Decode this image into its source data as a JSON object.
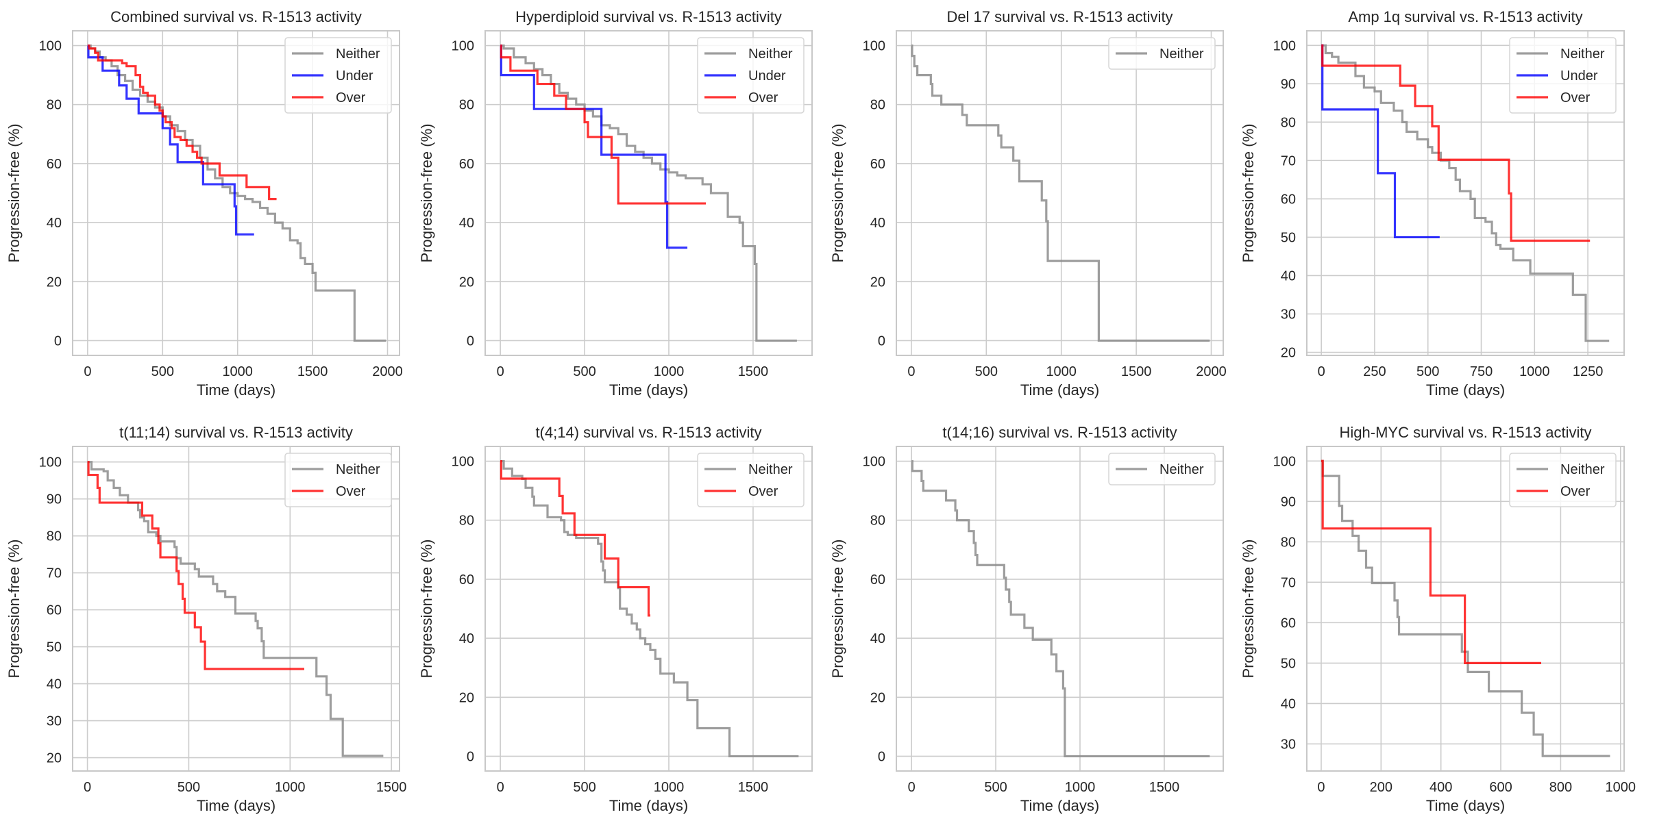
{
  "figure": {
    "colors": {
      "Neither": "#8c8c8c",
      "Under": "#0000ff",
      "Over": "#ff0000",
      "grid": "#cccccc",
      "spine": "#c8c8c8"
    },
    "xlabel": "Time (days)",
    "ylabel": "Progression-free (%)"
  },
  "chart_data": [
    {
      "type": "line",
      "title": "Combined survival vs. R-1513 activity",
      "xlabel": "Time (days)",
      "ylabel": "Progression-free (%)",
      "xlim": [
        -100,
        2080
      ],
      "ylim": [
        -5,
        105
      ],
      "xticks": [
        0,
        500,
        1000,
        1500,
        2000
      ],
      "yticks": [
        0,
        20,
        40,
        60,
        80,
        100
      ],
      "grid": true,
      "legend": "top-right",
      "series": [
        {
          "name": "Neither",
          "x": [
            0,
            20,
            50,
            80,
            120,
            160,
            200,
            250,
            300,
            350,
            400,
            450,
            500,
            550,
            600,
            650,
            700,
            750,
            800,
            850,
            900,
            950,
            1000,
            1050,
            1100,
            1150,
            1200,
            1250,
            1300,
            1350,
            1400,
            1420,
            1450,
            1500,
            1520,
            1760,
            1780,
            1990
          ],
          "y": [
            100,
            99,
            98,
            96,
            95,
            93,
            90,
            88,
            85,
            83,
            81,
            79,
            76,
            73,
            71,
            68,
            66,
            62,
            58,
            55,
            52,
            50,
            49,
            48,
            47,
            45,
            43,
            40,
            38,
            34,
            33,
            28,
            26,
            23,
            17,
            17,
            0,
            0
          ]
        },
        {
          "name": "Under",
          "x": [
            0,
            5,
            100,
            210,
            260,
            340,
            500,
            510,
            550,
            600,
            770,
            980,
            990,
            1110
          ],
          "y": [
            100,
            96,
            91.5,
            86.5,
            82,
            77,
            72,
            72,
            66.5,
            60.5,
            53,
            45.5,
            36,
            36
          ]
        },
        {
          "name": "Over",
          "x": [
            0,
            10,
            50,
            70,
            230,
            260,
            320,
            350,
            370,
            400,
            450,
            480,
            500,
            520,
            560,
            580,
            620,
            660,
            700,
            730,
            760,
            880,
            1060,
            1210,
            1260
          ],
          "y": [
            100,
            99,
            97.5,
            95,
            94,
            93,
            90,
            86,
            84,
            83,
            80,
            78,
            76,
            74,
            72,
            69,
            68,
            66,
            64,
            62,
            60,
            56,
            52,
            48,
            48
          ]
        }
      ]
    },
    {
      "type": "line",
      "title": "Hyperdiploid survival vs. R-1513 activity",
      "xlabel": "Time (days)",
      "ylabel": "Progression-free (%)",
      "xlim": [
        -90,
        1850
      ],
      "ylim": [
        -5,
        105
      ],
      "xticks": [
        0,
        500,
        1000,
        1500
      ],
      "yticks": [
        0,
        20,
        40,
        60,
        80,
        100
      ],
      "grid": true,
      "legend": "top-right",
      "series": [
        {
          "name": "Neither",
          "x": [
            0,
            20,
            80,
            150,
            200,
            250,
            300,
            350,
            400,
            450,
            500,
            550,
            600,
            650,
            700,
            750,
            800,
            850,
            900,
            950,
            1000,
            1050,
            1100,
            1150,
            1200,
            1250,
            1300,
            1350,
            1420,
            1440,
            1500,
            1510,
            1520,
            1760
          ],
          "y": [
            100,
            99,
            96,
            94,
            92,
            90,
            87,
            84,
            82,
            80,
            78,
            76,
            73,
            72,
            70,
            66,
            64,
            62,
            60,
            58,
            57,
            56,
            55,
            55,
            53,
            50,
            50,
            42,
            40,
            32,
            32,
            26,
            0,
            0
          ]
        },
        {
          "name": "Under",
          "x": [
            0,
            5,
            200,
            600,
            980,
            990,
            1110
          ],
          "y": [
            100,
            90,
            78.5,
            63,
            47,
            31.5,
            31.5
          ]
        },
        {
          "name": "Over",
          "x": [
            0,
            5,
            60,
            220,
            320,
            390,
            500,
            520,
            660,
            700,
            1220
          ],
          "y": [
            100,
            96,
            91.5,
            87,
            83,
            78.5,
            74,
            69,
            62,
            46.5,
            46.5
          ]
        }
      ]
    },
    {
      "type": "line",
      "title": "Del 17 survival vs. R-1513 activity",
      "xlabel": "Time (days)",
      "ylabel": "Progression-free (%)",
      "xlim": [
        -100,
        2080
      ],
      "ylim": [
        -5,
        105
      ],
      "xticks": [
        0,
        500,
        1000,
        1500,
        2000
      ],
      "yticks": [
        0,
        20,
        40,
        60,
        80,
        100
      ],
      "grid": true,
      "legend": "top-right",
      "series": [
        {
          "name": "Neither",
          "x": [
            0,
            5,
            20,
            40,
            130,
            140,
            200,
            340,
            370,
            580,
            600,
            680,
            720,
            870,
            900,
            910,
            1250,
            1990
          ],
          "y": [
            100,
            96.5,
            93,
            90,
            87,
            83,
            80,
            76.5,
            73,
            69.5,
            65.5,
            61,
            54,
            47.5,
            40.5,
            27,
            0,
            0
          ]
        }
      ]
    },
    {
      "type": "line",
      "title": "Amp 1q survival vs. R-1513 activity",
      "xlabel": "Time (days)",
      "ylabel": "Progression-free (%)",
      "xlim": [
        -68,
        1420
      ],
      "ylim": [
        19.2,
        103.8
      ],
      "xticks": [
        0,
        250,
        500,
        750,
        1000,
        1250
      ],
      "yticks": [
        20,
        30,
        40,
        50,
        60,
        70,
        80,
        90,
        100
      ],
      "grid": true,
      "legend": "top-right",
      "series": [
        {
          "name": "Neither",
          "x": [
            0,
            20,
            50,
            80,
            140,
            160,
            200,
            250,
            280,
            340,
            380,
            400,
            450,
            500,
            520,
            560,
            600,
            630,
            650,
            700,
            720,
            770,
            800,
            820,
            840,
            900,
            980,
            1180,
            1240,
            1350
          ],
          "y": [
            100,
            98,
            97,
            95.5,
            95.5,
            92,
            89,
            88,
            85,
            83,
            80,
            77.5,
            75.5,
            73.5,
            72,
            70,
            68,
            65,
            62,
            60,
            55,
            54,
            51,
            48,
            47,
            44,
            40.5,
            35,
            23,
            23
          ]
        },
        {
          "name": "Under",
          "x": [
            0,
            5,
            265,
            345,
            555
          ],
          "y": [
            100,
            83.3,
            66.7,
            50,
            50
          ]
        },
        {
          "name": "Over",
          "x": [
            0,
            5,
            370,
            440,
            520,
            550,
            880,
            890,
            1260
          ],
          "y": [
            100,
            94.7,
            89.5,
            84.2,
            78.9,
            70.2,
            61.4,
            49.1,
            49.1
          ]
        }
      ]
    },
    {
      "type": "line",
      "title": "t(11;14) survival vs. R-1513 activity",
      "xlabel": "Time (days)",
      "ylabel": "Progression-free (%)",
      "xlim": [
        -73,
        1540
      ],
      "ylim": [
        16.4,
        104.2
      ],
      "xticks": [
        0,
        500,
        1000,
        1500
      ],
      "yticks": [
        20,
        30,
        40,
        50,
        60,
        70,
        80,
        90,
        100
      ],
      "grid": true,
      "legend": "top-right",
      "series": [
        {
          "name": "Neither",
          "x": [
            0,
            20,
            80,
            100,
            130,
            160,
            200,
            250,
            260,
            280,
            300,
            340,
            360,
            430,
            440,
            460,
            530,
            550,
            620,
            640,
            680,
            730,
            830,
            840,
            860,
            870,
            1130,
            1180,
            1200,
            1260,
            1460
          ],
          "y": [
            100,
            98,
            97.5,
            95,
            93,
            91,
            89,
            87,
            85,
            84,
            81,
            80,
            78.5,
            77,
            74,
            72.5,
            71,
            69,
            67,
            65,
            63.5,
            59,
            57,
            55,
            51.5,
            47,
            42,
            37,
            30.5,
            20.5,
            20.5
          ]
        },
        {
          "name": "Over",
          "x": [
            0,
            5,
            50,
            60,
            270,
            320,
            350,
            360,
            440,
            450,
            470,
            480,
            530,
            560,
            580,
            1070
          ],
          "y": [
            100,
            96.5,
            93,
            89,
            85.5,
            82,
            78,
            74.2,
            70.5,
            67,
            63,
            59.2,
            55.3,
            51.4,
            44,
            44
          ]
        }
      ]
    },
    {
      "type": "line",
      "title": "t(4;14) survival vs. R-1513 activity",
      "xlabel": "Time (days)",
      "ylabel": "Progression-free (%)",
      "xlim": [
        -90,
        1850
      ],
      "ylim": [
        -5,
        105
      ],
      "xticks": [
        0,
        500,
        1000,
        1500
      ],
      "yticks": [
        0,
        20,
        40,
        60,
        80,
        100
      ],
      "grid": true,
      "legend": "top-right",
      "series": [
        {
          "name": "Neither",
          "x": [
            0,
            20,
            70,
            130,
            150,
            190,
            200,
            280,
            360,
            380,
            400,
            450,
            580,
            600,
            610,
            620,
            700,
            710,
            750,
            780,
            810,
            830,
            860,
            890,
            920,
            950,
            1030,
            1110,
            1170,
            1360,
            1770
          ],
          "y": [
            100,
            97.5,
            95,
            94,
            91,
            88,
            85,
            81,
            80,
            76,
            75,
            74,
            72,
            66,
            63,
            59,
            57,
            50,
            48,
            45,
            43,
            40,
            38,
            36,
            33,
            28,
            25,
            19,
            9.5,
            0,
            0
          ]
        },
        {
          "name": "Over",
          "x": [
            0,
            5,
            350,
            370,
            440,
            620,
            700,
            880,
            890
          ],
          "y": [
            100,
            94.1,
            88.2,
            82.3,
            75,
            67,
            57.3,
            47.7,
            47.7
          ]
        }
      ]
    },
    {
      "type": "line",
      "title": "t(14;16) survival vs. R-1513 activity",
      "xlabel": "Time (days)",
      "ylabel": "Progression-free (%)",
      "xlim": [
        -90,
        1850
      ],
      "ylim": [
        -5,
        105
      ],
      "xticks": [
        0,
        500,
        1000,
        1500
      ],
      "yticks": [
        0,
        20,
        40,
        60,
        80,
        100
      ],
      "grid": true,
      "legend": "top-right",
      "series": [
        {
          "name": "Neither",
          "x": [
            0,
            5,
            60,
            70,
            205,
            260,
            270,
            340,
            370,
            380,
            390,
            550,
            560,
            580,
            590,
            670,
            720,
            830,
            860,
            900,
            910,
            1770
          ],
          "y": [
            100,
            96.7,
            93.3,
            90,
            86.7,
            83.3,
            80,
            76.3,
            72.3,
            68.2,
            64.8,
            60.5,
            56.5,
            52.3,
            48,
            43.5,
            39.5,
            34.5,
            28.8,
            23,
            0,
            0
          ]
        }
      ]
    },
    {
      "type": "line",
      "title": "High-MYC survival vs. R-1513 activity",
      "xlabel": "Time (days)",
      "ylabel": "Progression-free (%)",
      "xlim": [
        -48,
        1012
      ],
      "ylim": [
        23.3,
        103.6
      ],
      "xticks": [
        0,
        200,
        400,
        600,
        800,
        1000
      ],
      "yticks": [
        30,
        40,
        50,
        60,
        70,
        80,
        90,
        100
      ],
      "grid": true,
      "legend": "top-right",
      "series": [
        {
          "name": "Neither",
          "x": [
            0,
            5,
            60,
            70,
            105,
            125,
            150,
            170,
            245,
            255,
            260,
            470,
            490,
            560,
            670,
            710,
            740,
            965
          ],
          "y": [
            100,
            96.3,
            88.9,
            85.2,
            81.5,
            77.8,
            73.6,
            69.8,
            65.5,
            61.4,
            57.1,
            52.8,
            47.8,
            43,
            37.7,
            32.3,
            27,
            27
          ]
        },
        {
          "name": "Over",
          "x": [
            0,
            5,
            365,
            480,
            735
          ],
          "y": [
            100,
            83.3,
            66.7,
            50,
            50
          ]
        }
      ]
    }
  ]
}
